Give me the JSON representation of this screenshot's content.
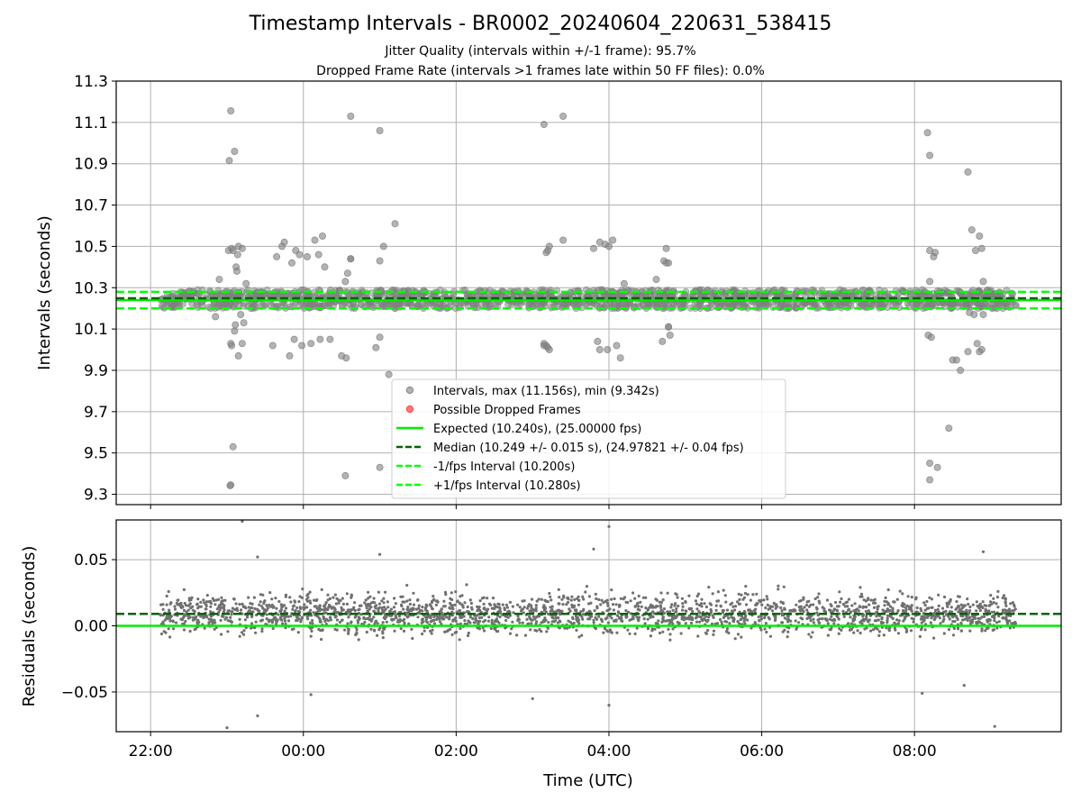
{
  "header": {
    "title": "Timestamp Intervals - BR0002_20240604_220631_538415",
    "subtitle_1": "Jitter Quality (intervals within +/-1 frame): 95.7%",
    "subtitle_2": "Dropped Frame Rate (intervals >1 frames late within 50 FF files): 0.0%"
  },
  "colors": {
    "points": "#808080",
    "dropped": "#ff4040",
    "expected": "#00ee00",
    "median": "#006400",
    "bounds": "#00ff00",
    "grid": "#b0b0b0"
  },
  "chart_data": [
    {
      "type": "scatter",
      "title": "Timestamp Intervals - BR0002_20240604_220631_538415",
      "xlabel": "",
      "ylabel": "Intervals (seconds)",
      "xlim_hours": [
        21.55,
        33.92
      ],
      "ylim": [
        9.25,
        11.3
      ],
      "yticks": [
        9.3,
        9.5,
        9.7,
        9.9,
        10.1,
        10.3,
        10.5,
        10.7,
        10.9,
        11.1,
        11.3
      ],
      "ytick_labels": [
        "9.3",
        "9.5",
        "9.7",
        "9.9",
        "10.1",
        "10.3",
        "10.5",
        "10.7",
        "10.9",
        "11.1",
        "11.3"
      ],
      "grid": true,
      "legend_position": "lower center",
      "legend": [
        "Intervals, max (11.156s), min (9.342s)",
        "Possible Dropped Frames",
        "Expected (10.240s), (25.00000 fps)",
        "Median (10.249 +/- 0.015 s), (24.97821 +/- 0.04 fps)",
        "-1/fps Interval (10.200s)",
        "+1/fps Interval (10.280s)"
      ],
      "reference_lines": {
        "expected": 10.24,
        "median": 10.249,
        "lower_bound": 10.2,
        "upper_bound": 10.28
      },
      "main_band": {
        "x_start_hours": 22.13,
        "x_end_hours": 33.33,
        "y_low": 10.2,
        "y_high": 10.29
      },
      "series": [
        {
          "name": "Intervals, max (11.156s), min (9.342s)",
          "x_hours": [
            23.05,
            23.1,
            23.03,
            23.08,
            23.15,
            23.2,
            23.12,
            23.13,
            23.14,
            23.02,
            23.06,
            23.25,
            22.9,
            22.85,
            23.11,
            23.18,
            23.1,
            23.05,
            23.22,
            23.15,
            23.2,
            23.08,
            23.05,
            23.04,
            23.06,
            23.65,
            23.72,
            23.75,
            23.85,
            23.95,
            23.9,
            24.05,
            24.15,
            24.2,
            24.25,
            24.28,
            23.6,
            23.82,
            23.88,
            23.98,
            24.1,
            24.22,
            24.62,
            24.58,
            24.55,
            24.6,
            24.62,
            24.35,
            24.5,
            24.56,
            24.55,
            25.0,
            25.05,
            25.0,
            24.95,
            25.0,
            25.0,
            25.2,
            25.1,
            25.25,
            25.12,
            25.2,
            24.62,
            25.05,
            27.15,
            27.2,
            27.22,
            27.18,
            27.4,
            27.15,
            27.18,
            27.2,
            27.22,
            27.4,
            27.15,
            27.8,
            27.88,
            27.95,
            27.85,
            28.05,
            27.98,
            28.0,
            28.15,
            28.1,
            28.2,
            27.88,
            27.95,
            28.12,
            28.05,
            28.6,
            28.72,
            28.75,
            28.78,
            28.7,
            28.8,
            28.78,
            28.75,
            28.7,
            28.62,
            28.78,
            32.17,
            32.2,
            32.2,
            32.25,
            32.2,
            32.27,
            32.18,
            32.22,
            32.3,
            32.55,
            32.6,
            32.7,
            32.75,
            32.85,
            32.72,
            32.8,
            32.9,
            32.88,
            32.85,
            32.88,
            32.9,
            32.5,
            32.45,
            32.7,
            32.82,
            32.78,
            32.2,
            32.2
          ],
          "y": [
            11.156,
            10.96,
            10.915,
            10.48,
            10.5,
            10.49,
            10.4,
            10.38,
            10.46,
            10.48,
            10.49,
            10.32,
            10.34,
            10.16,
            10.12,
            10.17,
            10.09,
            10.03,
            10.13,
            9.97,
            10.03,
            9.53,
            9.345,
            9.342,
            10.02,
            10.45,
            10.5,
            10.52,
            10.42,
            10.46,
            10.48,
            10.45,
            10.53,
            10.46,
            10.55,
            10.4,
            10.02,
            9.97,
            10.05,
            10.02,
            10.03,
            10.05,
            10.44,
            10.37,
            10.33,
            10.22,
            11.13,
            10.05,
            9.97,
            9.96,
            9.39,
            10.43,
            10.5,
            10.06,
            10.01,
            9.43,
            11.06,
            10.61,
            10.24,
            10.22,
            9.88,
            10.2,
            10.44,
            10.21,
            11.09,
            10.48,
            10.5,
            10.47,
            11.13,
            10.03,
            10.02,
            10.01,
            10.0,
            10.53,
            10.02,
            10.49,
            10.52,
            10.51,
            10.04,
            10.53,
            10.0,
            10.5,
            9.96,
            10.02,
            10.32,
            10.0,
            10.26,
            10.27,
            10.28,
            10.26,
            10.43,
            10.49,
            10.42,
            10.04,
            10.07,
            10.11,
            10.42,
            10.26,
            10.34,
            10.11,
            11.05,
            10.94,
            10.48,
            10.45,
            10.33,
            10.47,
            10.07,
            10.06,
            9.43,
            9.95,
            9.9,
            10.86,
            10.58,
            10.55,
            10.18,
            10.48,
            10.33,
            10.49,
            9.99,
            10.0,
            10.17,
            9.95,
            9.62,
            9.99,
            10.03,
            10.17,
            9.45,
            9.37
          ]
        },
        {
          "name": "Possible Dropped Frames",
          "x_hours": [],
          "y": []
        }
      ]
    },
    {
      "type": "scatter",
      "title": "",
      "xlabel": "Time (UTC)",
      "ylabel": "Residuals (seconds)",
      "xlim_hours": [
        21.55,
        33.92
      ],
      "ylim": [
        -0.08,
        0.08
      ],
      "yticks": [
        -0.05,
        0.0,
        0.05
      ],
      "ytick_labels": [
        "−0.05",
        "0.00",
        "0.05"
      ],
      "xtick_hours": [
        22,
        24,
        26,
        28,
        30,
        32
      ],
      "xtick_labels": [
        "22:00",
        "00:00",
        "02:00",
        "04:00",
        "06:00",
        "08:00"
      ],
      "grid": true,
      "reference_lines": {
        "expected_residual": 0.0,
        "median_residual": 0.009
      },
      "residual_cloud": {
        "x_start_hours": 22.13,
        "x_end_hours": 33.33,
        "typical_range": [
          -0.03,
          0.045
        ]
      },
      "series": [
        {
          "name": "Residuals",
          "x_hours": [
            23.2,
            23.0,
            23.4,
            23.4,
            24.1,
            25.0,
            27.8,
            27.0,
            28.0,
            28.0,
            32.1,
            32.65,
            33.05,
            32.9
          ],
          "y": [
            0.079,
            -0.077,
            -0.068,
            0.052,
            -0.052,
            0.054,
            0.058,
            -0.055,
            0.075,
            -0.06,
            -0.051,
            -0.045,
            -0.076,
            0.056
          ]
        }
      ]
    }
  ]
}
